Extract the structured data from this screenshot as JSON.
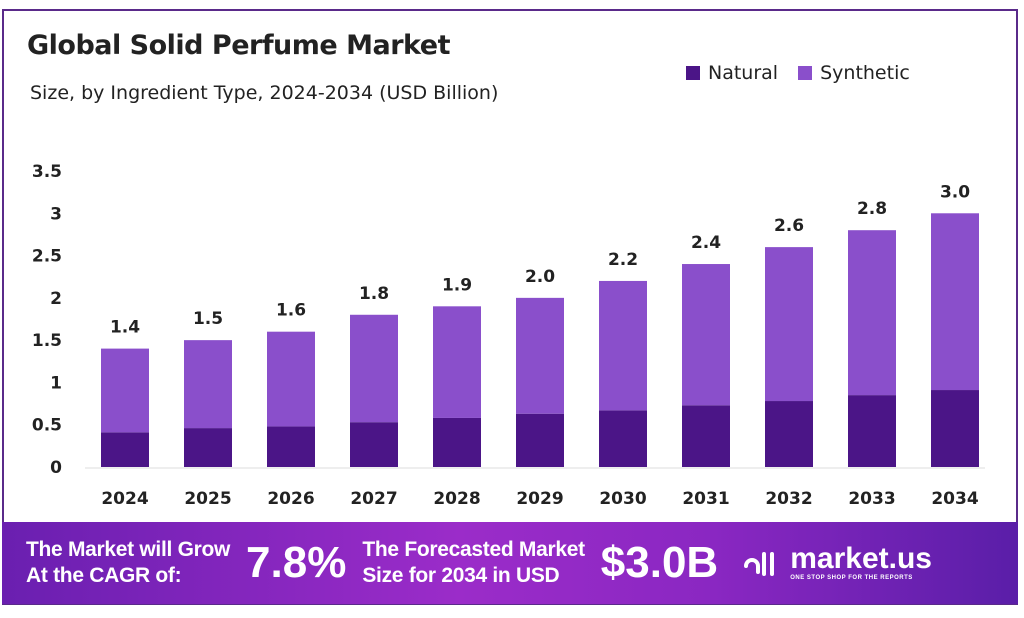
{
  "chart_data": {
    "type": "bar",
    "stacked": true,
    "title": "Global Solid Perfume Market",
    "subtitle": "Size, by Ingredient Type, 2024-2034 (USD Billion)",
    "categories": [
      "2024",
      "2025",
      "2026",
      "2027",
      "2028",
      "2029",
      "2030",
      "2031",
      "2032",
      "2033",
      "2034"
    ],
    "series": [
      {
        "name": "Natural",
        "color": "#4b1587",
        "values": [
          0.41,
          0.46,
          0.48,
          0.53,
          0.58,
          0.63,
          0.67,
          0.73,
          0.78,
          0.85,
          0.91
        ]
      },
      {
        "name": "Synthetic",
        "color": "#8a4fcb",
        "values": [
          0.99,
          1.04,
          1.12,
          1.27,
          1.32,
          1.37,
          1.53,
          1.67,
          1.82,
          1.95,
          2.09
        ]
      }
    ],
    "totals": [
      "1.4",
      "1.5",
      "1.6",
      "1.8",
      "1.9",
      "2.0",
      "2.2",
      "2.4",
      "2.6",
      "2.8",
      "3.0"
    ],
    "yticks": [
      "0",
      "0.5",
      "1",
      "1.5",
      "2",
      "2.5",
      "3",
      "3.5"
    ],
    "ylim": [
      0,
      3.5
    ],
    "grid": false,
    "legend_position": "top-right"
  },
  "banner": {
    "cagr_label_1": "The Market will Grow",
    "cagr_label_2": "At the CAGR of:",
    "cagr_value": "7.8%",
    "forecast_label_1": "The Forecasted Market",
    "forecast_label_2": "Size for 2034 in USD",
    "forecast_value": "$3.0B",
    "logo_name": "market.us",
    "logo_tagline": "ONE STOP SHOP FOR THE REPORTS"
  }
}
